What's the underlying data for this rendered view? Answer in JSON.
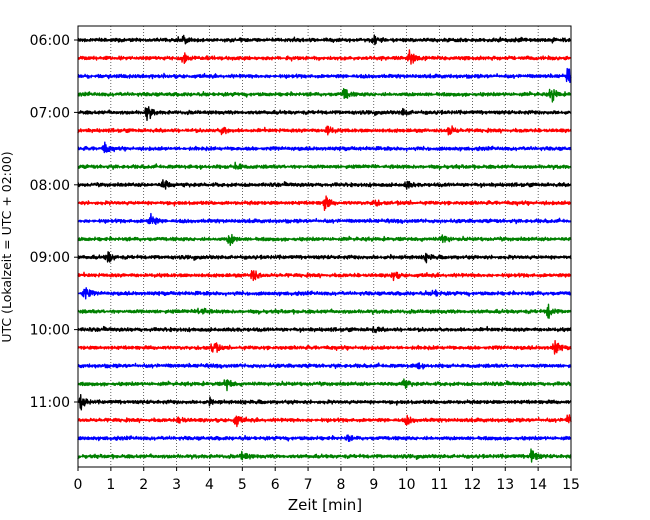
{
  "chart_data": {
    "type": "line",
    "title": "",
    "xlabel": "Zeit  [min]",
    "ylabel": "UTC (Lokalzeit = UTC + 02:00)",
    "xlim": [
      0,
      15
    ],
    "x_ticks": [
      0,
      1,
      2,
      3,
      4,
      5,
      6,
      7,
      8,
      9,
      10,
      11,
      12,
      13,
      14,
      15
    ],
    "x_tick_labels": [
      "0",
      "1",
      "2",
      "3",
      "4",
      "5",
      "6",
      "7",
      "8",
      "9",
      "10",
      "11",
      "12",
      "13",
      "14",
      "15"
    ],
    "vertical_gridlines": true,
    "grid_style": "dotted",
    "rows_start": "06:00",
    "row_interval_min": 15,
    "y_tick_labels": [
      "06:00",
      "07:00",
      "08:00",
      "09:00",
      "10:00",
      "11:00"
    ],
    "color_cycle": [
      "#000000",
      "#ff0000",
      "#0000ff",
      "#008000"
    ],
    "traces": [
      {
        "start": "06:00",
        "color": "#000000",
        "events": [
          {
            "t": 3.2,
            "amp": 0.4
          },
          {
            "t": 9.0,
            "amp": 0.5
          }
        ]
      },
      {
        "start": "06:15",
        "color": "#ff0000",
        "events": [
          {
            "t": 3.2,
            "amp": 0.6
          },
          {
            "t": 10.1,
            "amp": 0.9
          }
        ]
      },
      {
        "start": "06:30",
        "color": "#0000ff",
        "events": [
          {
            "t": 14.9,
            "amp": 1.0
          }
        ]
      },
      {
        "start": "06:45",
        "color": "#008000",
        "events": [
          {
            "t": 8.1,
            "amp": 0.8
          },
          {
            "t": 14.4,
            "amp": 0.9
          }
        ]
      },
      {
        "start": "07:00",
        "color": "#000000",
        "events": [
          {
            "t": 2.1,
            "amp": 1.0
          },
          {
            "t": 9.9,
            "amp": 0.4
          }
        ]
      },
      {
        "start": "07:15",
        "color": "#ff0000",
        "events": [
          {
            "t": 4.4,
            "amp": 0.5
          },
          {
            "t": 7.6,
            "amp": 0.6
          },
          {
            "t": 11.3,
            "amp": 0.7
          }
        ]
      },
      {
        "start": "07:30",
        "color": "#0000ff",
        "events": [
          {
            "t": 0.8,
            "amp": 0.6
          }
        ]
      },
      {
        "start": "07:45",
        "color": "#008000",
        "events": [
          {
            "t": 4.8,
            "amp": 0.5
          }
        ]
      },
      {
        "start": "08:00",
        "color": "#000000",
        "events": [
          {
            "t": 2.6,
            "amp": 0.7
          },
          {
            "t": 10.0,
            "amp": 0.4
          }
        ]
      },
      {
        "start": "08:15",
        "color": "#ff0000",
        "events": [
          {
            "t": 7.5,
            "amp": 0.9
          },
          {
            "t": 9.0,
            "amp": 0.4
          }
        ]
      },
      {
        "start": "08:30",
        "color": "#0000ff",
        "events": [
          {
            "t": 2.2,
            "amp": 1.0
          }
        ]
      },
      {
        "start": "08:45",
        "color": "#008000",
        "events": [
          {
            "t": 4.6,
            "amp": 0.8
          },
          {
            "t": 11.1,
            "amp": 0.5
          }
        ]
      },
      {
        "start": "09:00",
        "color": "#000000",
        "events": [
          {
            "t": 0.9,
            "amp": 0.8
          },
          {
            "t": 10.6,
            "amp": 0.4
          }
        ]
      },
      {
        "start": "09:15",
        "color": "#ff0000",
        "events": [
          {
            "t": 5.3,
            "amp": 0.9
          },
          {
            "t": 9.6,
            "amp": 0.5
          }
        ]
      },
      {
        "start": "09:30",
        "color": "#0000ff",
        "events": [
          {
            "t": 0.2,
            "amp": 0.9
          },
          {
            "t": 10.8,
            "amp": 0.5
          }
        ]
      },
      {
        "start": "09:45",
        "color": "#008000",
        "events": [
          {
            "t": 3.7,
            "amp": 0.9
          },
          {
            "t": 14.3,
            "amp": 0.8
          }
        ]
      },
      {
        "start": "10:00",
        "color": "#000000",
        "events": [
          {
            "t": 9.0,
            "amp": 0.3
          }
        ]
      },
      {
        "start": "10:15",
        "color": "#ff0000",
        "events": [
          {
            "t": 4.1,
            "amp": 0.9
          },
          {
            "t": 14.5,
            "amp": 0.9
          }
        ]
      },
      {
        "start": "10:30",
        "color": "#0000ff",
        "events": [
          {
            "t": 10.3,
            "amp": 0.4
          }
        ]
      },
      {
        "start": "10:45",
        "color": "#008000",
        "events": [
          {
            "t": 4.5,
            "amp": 0.8
          },
          {
            "t": 9.9,
            "amp": 0.6
          }
        ]
      },
      {
        "start": "11:00",
        "color": "#000000",
        "events": [
          {
            "t": 0.1,
            "amp": 0.8
          },
          {
            "t": 4.0,
            "amp": 0.3
          }
        ]
      },
      {
        "start": "11:15",
        "color": "#ff0000",
        "events": [
          {
            "t": 3.1,
            "amp": 0.5
          },
          {
            "t": 4.8,
            "amp": 0.7
          },
          {
            "t": 10.0,
            "amp": 0.5
          },
          {
            "t": 14.9,
            "amp": 0.8
          }
        ]
      },
      {
        "start": "11:30",
        "color": "#0000ff",
        "events": [
          {
            "t": 8.2,
            "amp": 0.3
          }
        ]
      },
      {
        "start": "11:45",
        "color": "#008000",
        "events": [
          {
            "t": 5.0,
            "amp": 0.6
          },
          {
            "t": 13.8,
            "amp": 0.9
          }
        ]
      }
    ]
  }
}
